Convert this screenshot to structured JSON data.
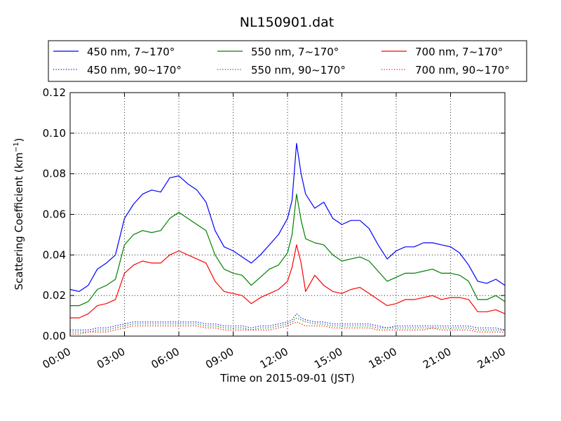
{
  "chart_data": {
    "type": "line",
    "title": "NL150901.dat",
    "xlabel": "Time on 2015-09-01 (JST)",
    "ylabel": "Scattering Coefficient (km",
    "ylabel_sup": "−1",
    "ylabel_close": ")",
    "xlim": [
      0,
      24
    ],
    "ylim": [
      0,
      0.12
    ],
    "grid": true,
    "legend_position": "top (above plot, 3 columns)",
    "x_ticks": [
      {
        "value": 0,
        "label": "00:00"
      },
      {
        "value": 3,
        "label": "03:00"
      },
      {
        "value": 6,
        "label": "06:00"
      },
      {
        "value": 9,
        "label": "09:00"
      },
      {
        "value": 12,
        "label": "12:00"
      },
      {
        "value": 15,
        "label": "15:00"
      },
      {
        "value": 18,
        "label": "18:00"
      },
      {
        "value": 21,
        "label": "21:00"
      },
      {
        "value": 24,
        "label": "24:00"
      }
    ],
    "y_ticks": [
      {
        "value": 0.0,
        "label": "0.00"
      },
      {
        "value": 0.02,
        "label": "0.02"
      },
      {
        "value": 0.04,
        "label": "0.04"
      },
      {
        "value": 0.06,
        "label": "0.06"
      },
      {
        "value": 0.08,
        "label": "0.08"
      },
      {
        "value": 0.1,
        "label": "0.10"
      },
      {
        "value": 0.12,
        "label": "0.12"
      }
    ],
    "x": [
      0,
      0.5,
      1,
      1.5,
      2,
      2.5,
      3,
      3.5,
      4,
      4.5,
      5,
      5.5,
      6,
      6.5,
      7,
      7.5,
      8,
      8.5,
      9,
      9.5,
      10,
      10.5,
      11,
      11.5,
      12,
      12.25,
      12.5,
      12.75,
      13,
      13.5,
      14,
      14.5,
      15,
      15.5,
      16,
      16.5,
      17,
      17.5,
      18,
      18.5,
      19,
      19.5,
      20,
      20.5,
      21,
      21.5,
      22,
      22.5,
      23,
      23.5,
      24
    ],
    "series": [
      {
        "name": "450 nm, 7~170°",
        "color": "#0000ff",
        "style": "solid",
        "values": [
          0.023,
          0.022,
          0.025,
          0.033,
          0.036,
          0.04,
          0.058,
          0.065,
          0.07,
          0.072,
          0.071,
          0.078,
          0.079,
          0.075,
          0.072,
          0.066,
          0.052,
          0.044,
          0.042,
          0.039,
          0.036,
          0.04,
          0.045,
          0.05,
          0.058,
          0.067,
          0.095,
          0.08,
          0.07,
          0.063,
          0.066,
          0.058,
          0.055,
          0.057,
          0.057,
          0.053,
          0.045,
          0.038,
          0.042,
          0.044,
          0.044,
          0.046,
          0.046,
          0.045,
          0.044,
          0.041,
          0.035,
          0.027,
          0.026,
          0.028,
          0.025
        ]
      },
      {
        "name": "450 nm, 90~170°",
        "color": "#0000ff",
        "style": "dotted",
        "values": [
          0.003,
          0.003,
          0.003,
          0.004,
          0.004,
          0.005,
          0.006,
          0.007,
          0.007,
          0.007,
          0.007,
          0.007,
          0.007,
          0.007,
          0.007,
          0.006,
          0.006,
          0.005,
          0.005,
          0.005,
          0.004,
          0.005,
          0.005,
          0.006,
          0.007,
          0.008,
          0.011,
          0.009,
          0.008,
          0.007,
          0.007,
          0.006,
          0.006,
          0.006,
          0.006,
          0.006,
          0.005,
          0.004,
          0.005,
          0.005,
          0.005,
          0.005,
          0.005,
          0.005,
          0.005,
          0.005,
          0.005,
          0.004,
          0.004,
          0.004,
          0.003
        ]
      },
      {
        "name": "550 nm, 7~170°",
        "color": "#008000",
        "style": "solid",
        "values": [
          0.015,
          0.015,
          0.017,
          0.023,
          0.025,
          0.028,
          0.045,
          0.05,
          0.052,
          0.051,
          0.052,
          0.058,
          0.061,
          0.058,
          0.055,
          0.052,
          0.04,
          0.033,
          0.031,
          0.03,
          0.025,
          0.029,
          0.033,
          0.035,
          0.041,
          0.05,
          0.07,
          0.057,
          0.048,
          0.046,
          0.045,
          0.04,
          0.037,
          0.038,
          0.039,
          0.037,
          0.032,
          0.027,
          0.029,
          0.031,
          0.031,
          0.032,
          0.033,
          0.031,
          0.031,
          0.03,
          0.027,
          0.018,
          0.018,
          0.02,
          0.017
        ]
      },
      {
        "name": "550 nm, 90~170°",
        "color": "#008000",
        "style": "dotted",
        "values": [
          0.002,
          0.002,
          0.002,
          0.003,
          0.003,
          0.004,
          0.005,
          0.006,
          0.006,
          0.006,
          0.006,
          0.006,
          0.006,
          0.006,
          0.006,
          0.005,
          0.005,
          0.004,
          0.004,
          0.004,
          0.003,
          0.004,
          0.004,
          0.005,
          0.006,
          0.007,
          0.009,
          0.008,
          0.007,
          0.006,
          0.006,
          0.005,
          0.005,
          0.005,
          0.005,
          0.005,
          0.004,
          0.004,
          0.004,
          0.004,
          0.004,
          0.004,
          0.004,
          0.004,
          0.004,
          0.004,
          0.004,
          0.003,
          0.003,
          0.003,
          0.003
        ]
      },
      {
        "name": "700 nm, 7~170°",
        "color": "#ff0000",
        "style": "solid",
        "values": [
          0.009,
          0.009,
          0.011,
          0.015,
          0.016,
          0.018,
          0.031,
          0.035,
          0.037,
          0.036,
          0.036,
          0.04,
          0.042,
          0.04,
          0.038,
          0.036,
          0.027,
          0.022,
          0.021,
          0.02,
          0.016,
          0.019,
          0.021,
          0.023,
          0.027,
          0.034,
          0.045,
          0.036,
          0.022,
          0.03,
          0.025,
          0.022,
          0.021,
          0.023,
          0.024,
          0.021,
          0.018,
          0.015,
          0.016,
          0.018,
          0.018,
          0.019,
          0.02,
          0.018,
          0.019,
          0.019,
          0.018,
          0.012,
          0.012,
          0.013,
          0.011
        ]
      },
      {
        "name": "700 nm, 90~170°",
        "color": "#ff0000",
        "style": "dotted",
        "values": [
          0.001,
          0.001,
          0.002,
          0.002,
          0.002,
          0.003,
          0.004,
          0.005,
          0.005,
          0.005,
          0.005,
          0.005,
          0.005,
          0.005,
          0.005,
          0.004,
          0.004,
          0.003,
          0.003,
          0.003,
          0.003,
          0.003,
          0.003,
          0.004,
          0.005,
          0.006,
          0.007,
          0.006,
          0.005,
          0.005,
          0.005,
          0.004,
          0.004,
          0.004,
          0.004,
          0.004,
          0.003,
          0.003,
          0.003,
          0.003,
          0.003,
          0.003,
          0.004,
          0.003,
          0.003,
          0.003,
          0.003,
          0.002,
          0.002,
          0.002,
          0.002
        ]
      }
    ]
  }
}
